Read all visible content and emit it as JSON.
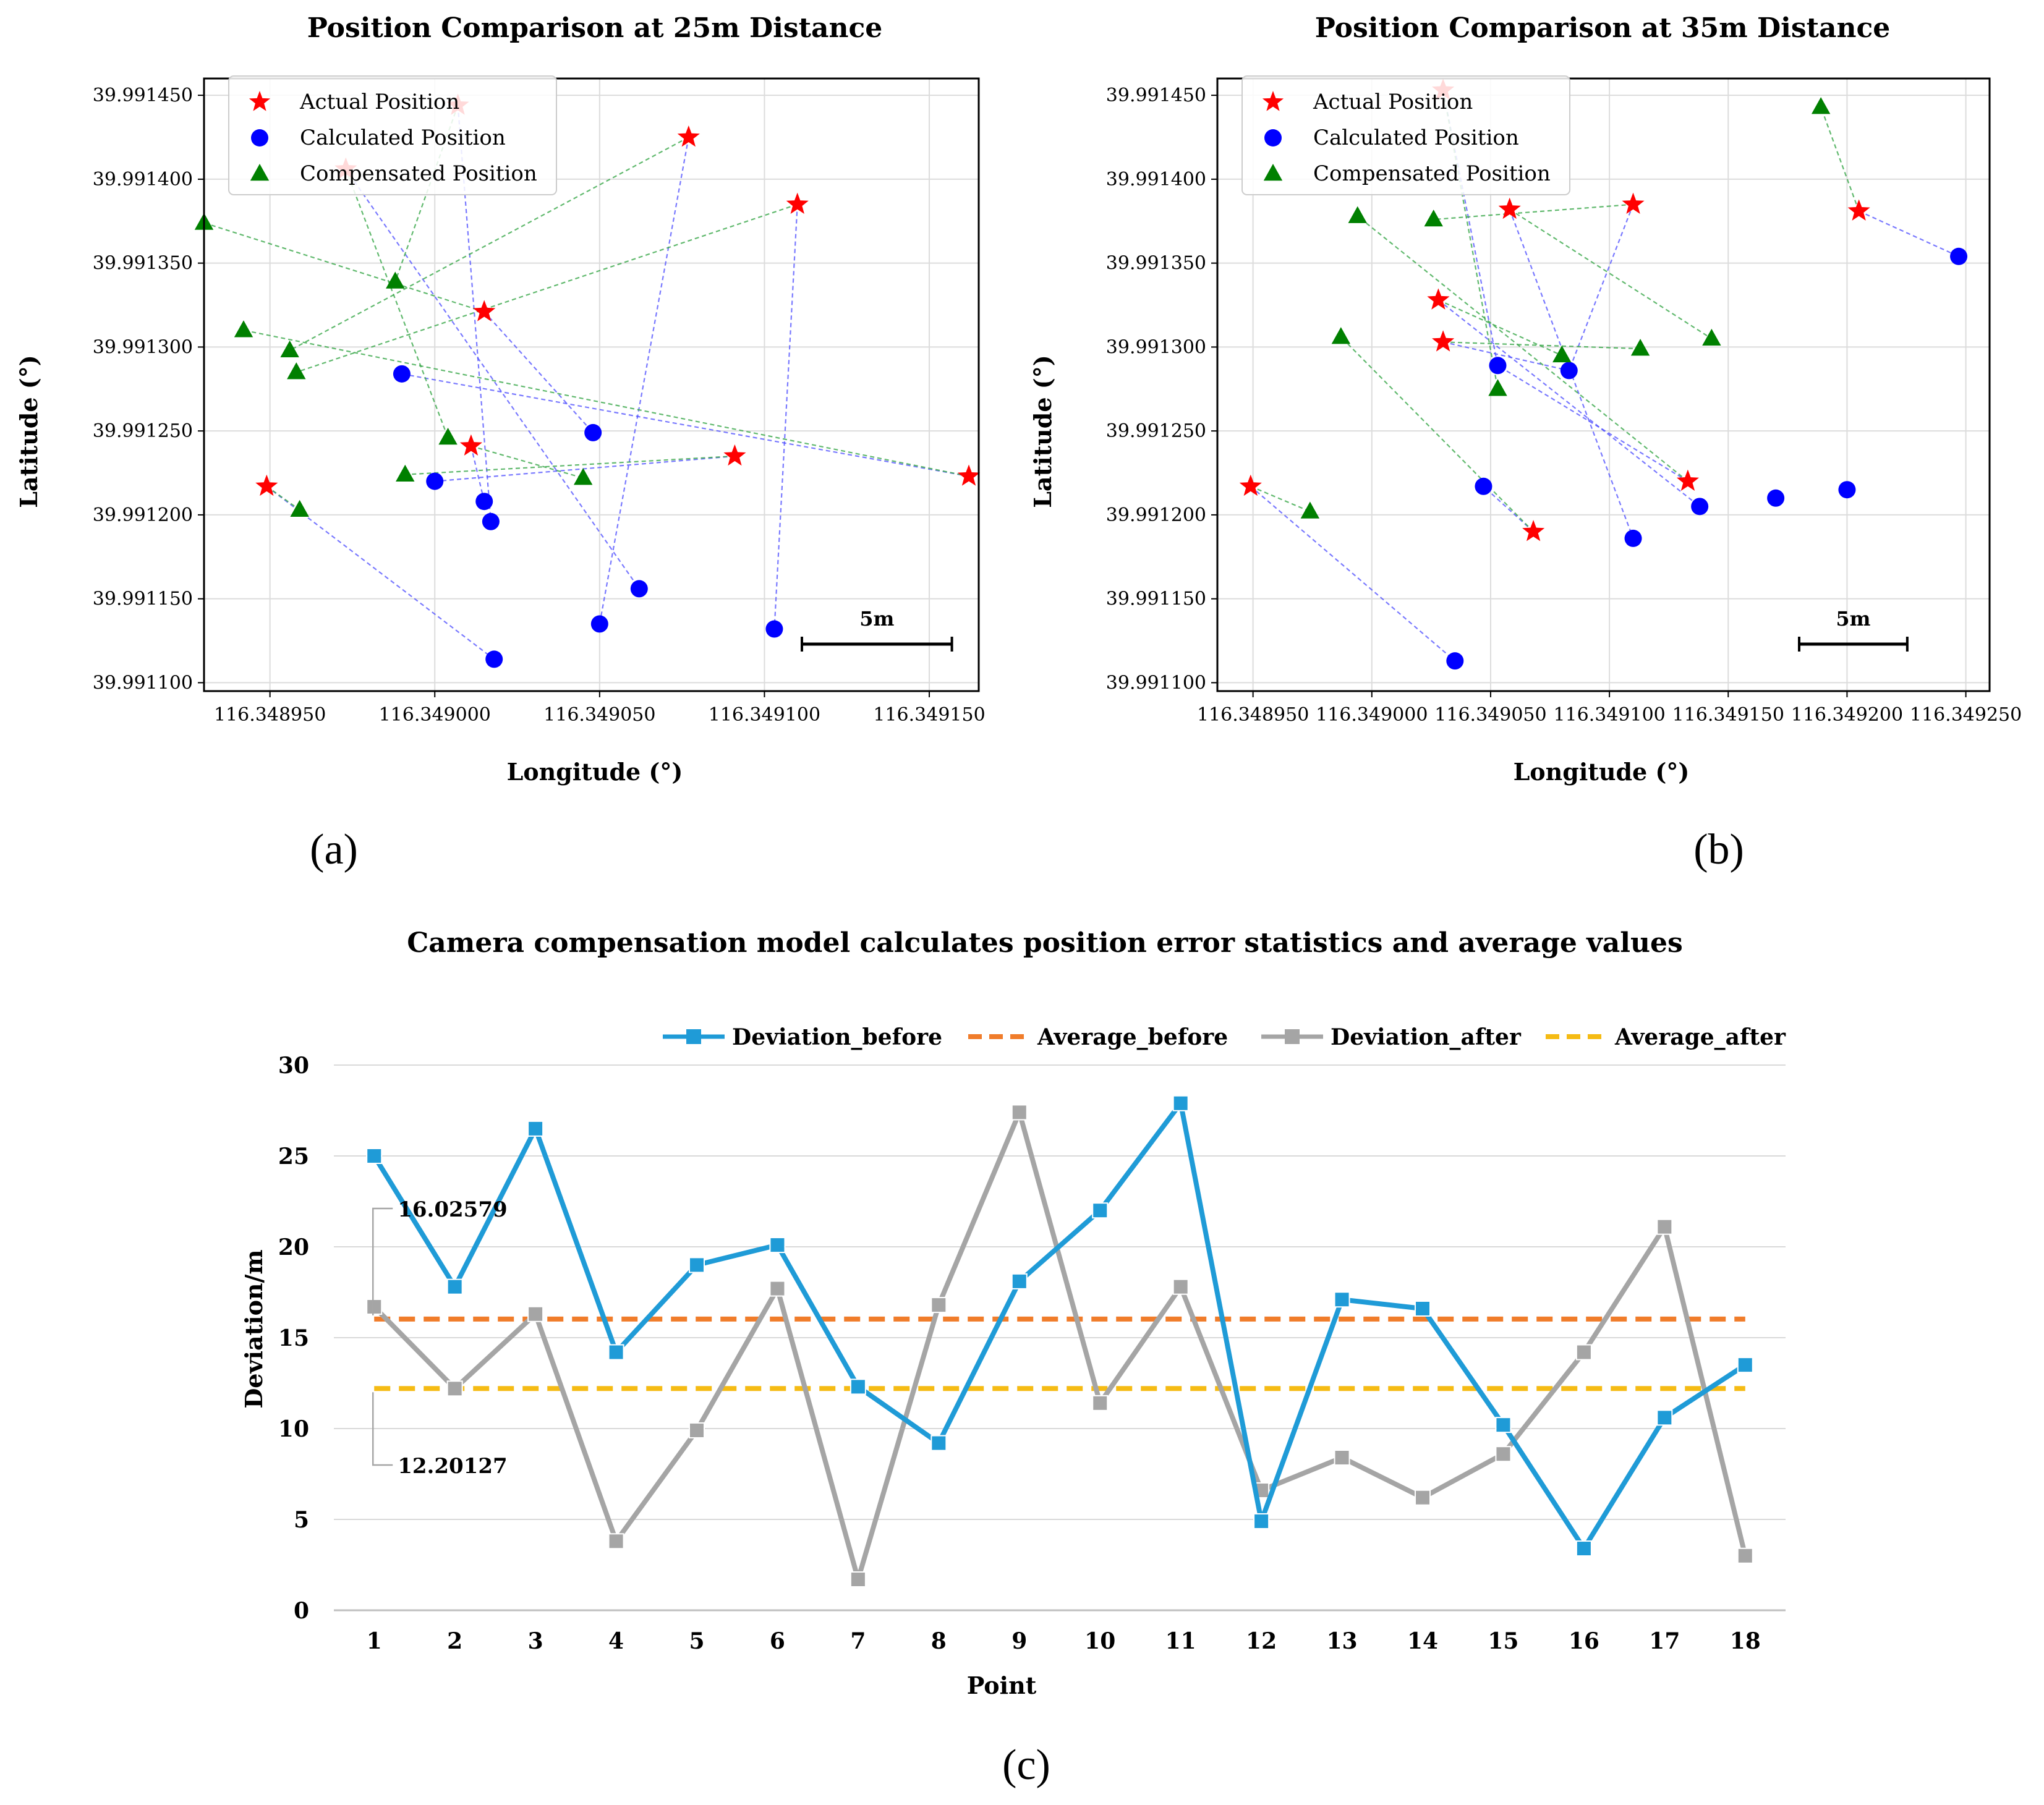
{
  "chart_data": [
    {
      "id": "a",
      "type": "scatter",
      "title": "Position Comparison at 25m Distance",
      "xlabel": "Longitude (°)",
      "ylabel": "Latitude (°)",
      "panel_label": "(a)",
      "xlim": [
        116.34893,
        116.349165
      ],
      "ylim": [
        39.991095,
        39.99146
      ],
      "x_ticks": [
        116.34895,
        116.349,
        116.34905,
        116.3491,
        116.34915
      ],
      "x_tick_labels": [
        "116.348950",
        "116.349000",
        "116.349050",
        "116.349100",
        "116.349150"
      ],
      "y_ticks": [
        39.9911,
        39.99115,
        39.9912,
        39.99125,
        39.9913,
        39.99135,
        39.9914,
        39.99145
      ],
      "y_tick_labels": [
        "39.991100",
        "39.991150",
        "39.991200",
        "39.991250",
        "39.991300",
        "39.991350",
        "39.991400",
        "39.991450"
      ],
      "grid": true,
      "legend": [
        "Actual Position",
        "Calculated Position",
        "Compensated Position"
      ],
      "legend_position": "top-left",
      "scale_bar_label": "5m",
      "scale_bar_length_deg": 4.55e-05,
      "actual": [
        [
          116.348949,
          39.991217
        ],
        [
          116.349007,
          39.991444
        ],
        [
          116.349011,
          39.991241
        ],
        [
          116.349015,
          39.991321
        ],
        [
          116.349077,
          39.991425
        ],
        [
          116.349091,
          39.991235
        ],
        [
          116.34911,
          39.991385
        ],
        [
          116.349162,
          39.991223
        ],
        [
          116.348973,
          39.991406
        ]
      ],
      "calculated": [
        [
          116.34899,
          39.991284
        ],
        [
          116.349,
          39.99122
        ],
        [
          116.349015,
          39.991208
        ],
        [
          116.349017,
          39.991196
        ],
        [
          116.349018,
          39.991114
        ],
        [
          116.349048,
          39.991249
        ],
        [
          116.34905,
          39.991135
        ],
        [
          116.349062,
          39.991156
        ],
        [
          116.349103,
          39.991132
        ]
      ],
      "compensated": [
        [
          116.34893,
          39.991374
        ],
        [
          116.348942,
          39.99131
        ],
        [
          116.348956,
          39.991298
        ],
        [
          116.348958,
          39.991285
        ],
        [
          116.348959,
          39.991203
        ],
        [
          116.348988,
          39.991339
        ],
        [
          116.348991,
          39.991224
        ],
        [
          116.349004,
          39.991246
        ],
        [
          116.349045,
          39.991222
        ]
      ],
      "blue_links": [
        [
          0,
          4
        ],
        [
          8,
          7
        ],
        [
          1,
          3
        ],
        [
          2,
          2
        ],
        [
          4,
          6
        ],
        [
          6,
          8
        ],
        [
          7,
          0
        ],
        [
          5,
          1
        ],
        [
          3,
          5
        ]
      ],
      "green_links": [
        [
          0,
          4
        ],
        [
          1,
          5
        ],
        [
          8,
          7
        ],
        [
          2,
          8
        ],
        [
          4,
          2
        ],
        [
          6,
          3
        ],
        [
          7,
          1
        ],
        [
          3,
          0
        ],
        [
          5,
          6
        ]
      ]
    },
    {
      "id": "b",
      "type": "scatter",
      "title": "Position Comparison at 35m Distance",
      "xlabel": "Longitude (°)",
      "ylabel": "Latitude (°)",
      "panel_label": "(b)",
      "xlim": [
        116.348935,
        116.34926
      ],
      "ylim": [
        39.991095,
        39.99146
      ],
      "x_ticks": [
        116.34895,
        116.349,
        116.34905,
        116.3491,
        116.34915,
        116.3492,
        116.34925
      ],
      "x_tick_labels": [
        "116.348950",
        "116.349000",
        "116.349050",
        "116.349100",
        "116.349150",
        "116.349200",
        "116.349250"
      ],
      "y_ticks": [
        39.9911,
        39.99115,
        39.9912,
        39.99125,
        39.9913,
        39.99135,
        39.9914,
        39.99145
      ],
      "y_tick_labels": [
        "39.991100",
        "39.991150",
        "39.991200",
        "39.991250",
        "39.991300",
        "39.991350",
        "39.991400",
        "39.991450"
      ],
      "grid": true,
      "legend": [
        "Actual Position",
        "Calculated Position",
        "Compensated Position"
      ],
      "legend_position": "top-left",
      "scale_bar_label": "5m",
      "scale_bar_length_deg": 4.55e-05,
      "actual": [
        [
          116.348949,
          39.991217
        ],
        [
          116.349028,
          39.991328
        ],
        [
          116.34903,
          39.991303
        ],
        [
          116.34903,
          39.991453
        ],
        [
          116.349058,
          39.991382
        ],
        [
          116.349068,
          39.99119
        ],
        [
          116.34911,
          39.991385
        ],
        [
          116.349133,
          39.99122
        ],
        [
          116.349205,
          39.991381
        ]
      ],
      "calculated": [
        [
          116.349035,
          39.991113
        ],
        [
          116.349047,
          39.991217
        ],
        [
          116.349053,
          39.991289
        ],
        [
          116.349083,
          39.991286
        ],
        [
          116.34911,
          39.991186
        ],
        [
          116.349138,
          39.991205
        ],
        [
          116.34917,
          39.99121
        ],
        [
          116.3492,
          39.991215
        ],
        [
          116.349247,
          39.991354
        ]
      ],
      "compensated": [
        [
          116.348974,
          39.991202
        ],
        [
          116.348987,
          39.991306
        ],
        [
          116.348994,
          39.991378
        ],
        [
          116.349026,
          39.991376
        ],
        [
          116.349053,
          39.991275
        ],
        [
          116.34908,
          39.991295
        ],
        [
          116.349113,
          39.991299
        ],
        [
          116.349143,
          39.991305
        ],
        [
          116.349189,
          39.991443
        ]
      ],
      "blue_links": [
        [
          0,
          0
        ],
        [
          1,
          5
        ],
        [
          2,
          3
        ],
        [
          3,
          2
        ],
        [
          4,
          4
        ],
        [
          5,
          1
        ],
        [
          6,
          3
        ],
        [
          7,
          2
        ],
        [
          8,
          8
        ]
      ],
      "green_links": [
        [
          0,
          0
        ],
        [
          5,
          1
        ],
        [
          3,
          4
        ],
        [
          2,
          6
        ],
        [
          4,
          7
        ],
        [
          7,
          2
        ],
        [
          6,
          3
        ],
        [
          1,
          5
        ],
        [
          8,
          8
        ]
      ]
    },
    {
      "id": "c",
      "type": "line",
      "title": "Camera compensation model calculates position error statistics and average values",
      "xlabel": "Point",
      "ylabel": "Deviation/m",
      "panel_label": "(c)",
      "categories": [
        "1",
        "2",
        "3",
        "4",
        "5",
        "6",
        "7",
        "8",
        "9",
        "10",
        "11",
        "12",
        "13",
        "14",
        "15",
        "16",
        "17",
        "18"
      ],
      "ylim": [
        0,
        30
      ],
      "y_ticks": [
        0,
        5,
        10,
        15,
        20,
        25,
        30
      ],
      "grid": true,
      "legend_position": "top",
      "series": [
        {
          "name": "Deviation_before",
          "color": "#1f9bd7",
          "values": [
            25.0,
            17.8,
            26.5,
            14.2,
            19.0,
            20.1,
            12.3,
            9.2,
            18.1,
            22.0,
            27.9,
            4.9,
            17.1,
            16.6,
            10.2,
            3.4,
            10.6,
            13.5
          ]
        },
        {
          "name": "Average_before",
          "color": "#f07c2a",
          "dashed": true,
          "value": 16.02579
        },
        {
          "name": "Deviation_after",
          "color": "#a5a5a5",
          "values": [
            16.7,
            12.2,
            16.3,
            3.8,
            9.9,
            17.7,
            1.7,
            16.8,
            27.4,
            11.4,
            17.8,
            6.6,
            8.4,
            6.2,
            8.6,
            14.2,
            21.1,
            3.0
          ]
        },
        {
          "name": "Average_after",
          "color": "#f5bb14",
          "dashed": true,
          "value": 12.20127
        }
      ],
      "annotations": [
        {
          "text": "16.02579",
          "target": "Average_before"
        },
        {
          "text": "12.20127",
          "target": "Average_after"
        }
      ]
    }
  ]
}
